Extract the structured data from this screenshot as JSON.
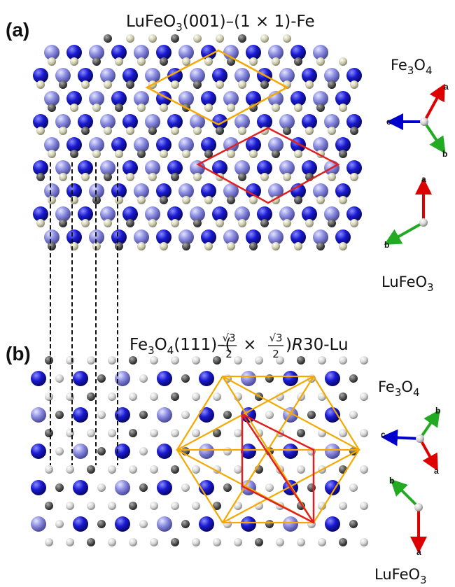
{
  "panel_a": {
    "label": "(a)",
    "title": [
      "LuFeO",
      "3",
      "(001)–(1 × 1)-Fe"
    ],
    "upper_frame": {
      "name": [
        "Fe",
        "3",
        "O",
        "4"
      ],
      "axes": [
        "a",
        "c",
        "b"
      ]
    },
    "lower_frame": {
      "name": [
        "LuFeO",
        "3"
      ],
      "axes": [
        "a",
        "b"
      ]
    }
  },
  "panel_b": {
    "label": "(b)",
    "title": [
      "Fe",
      "3",
      "O",
      "4",
      "(111)–(",
      "√3",
      "2",
      " × ",
      "√3",
      "2",
      ")",
      "R",
      "30-Lu"
    ],
    "upper_frame": {
      "name": [
        "Fe",
        "3",
        "O",
        "4"
      ],
      "axes": [
        "b",
        "c",
        "a"
      ]
    },
    "lower_frame": {
      "name": [
        "LuFeO",
        "3"
      ],
      "axes": [
        "b",
        "a"
      ]
    }
  }
}
